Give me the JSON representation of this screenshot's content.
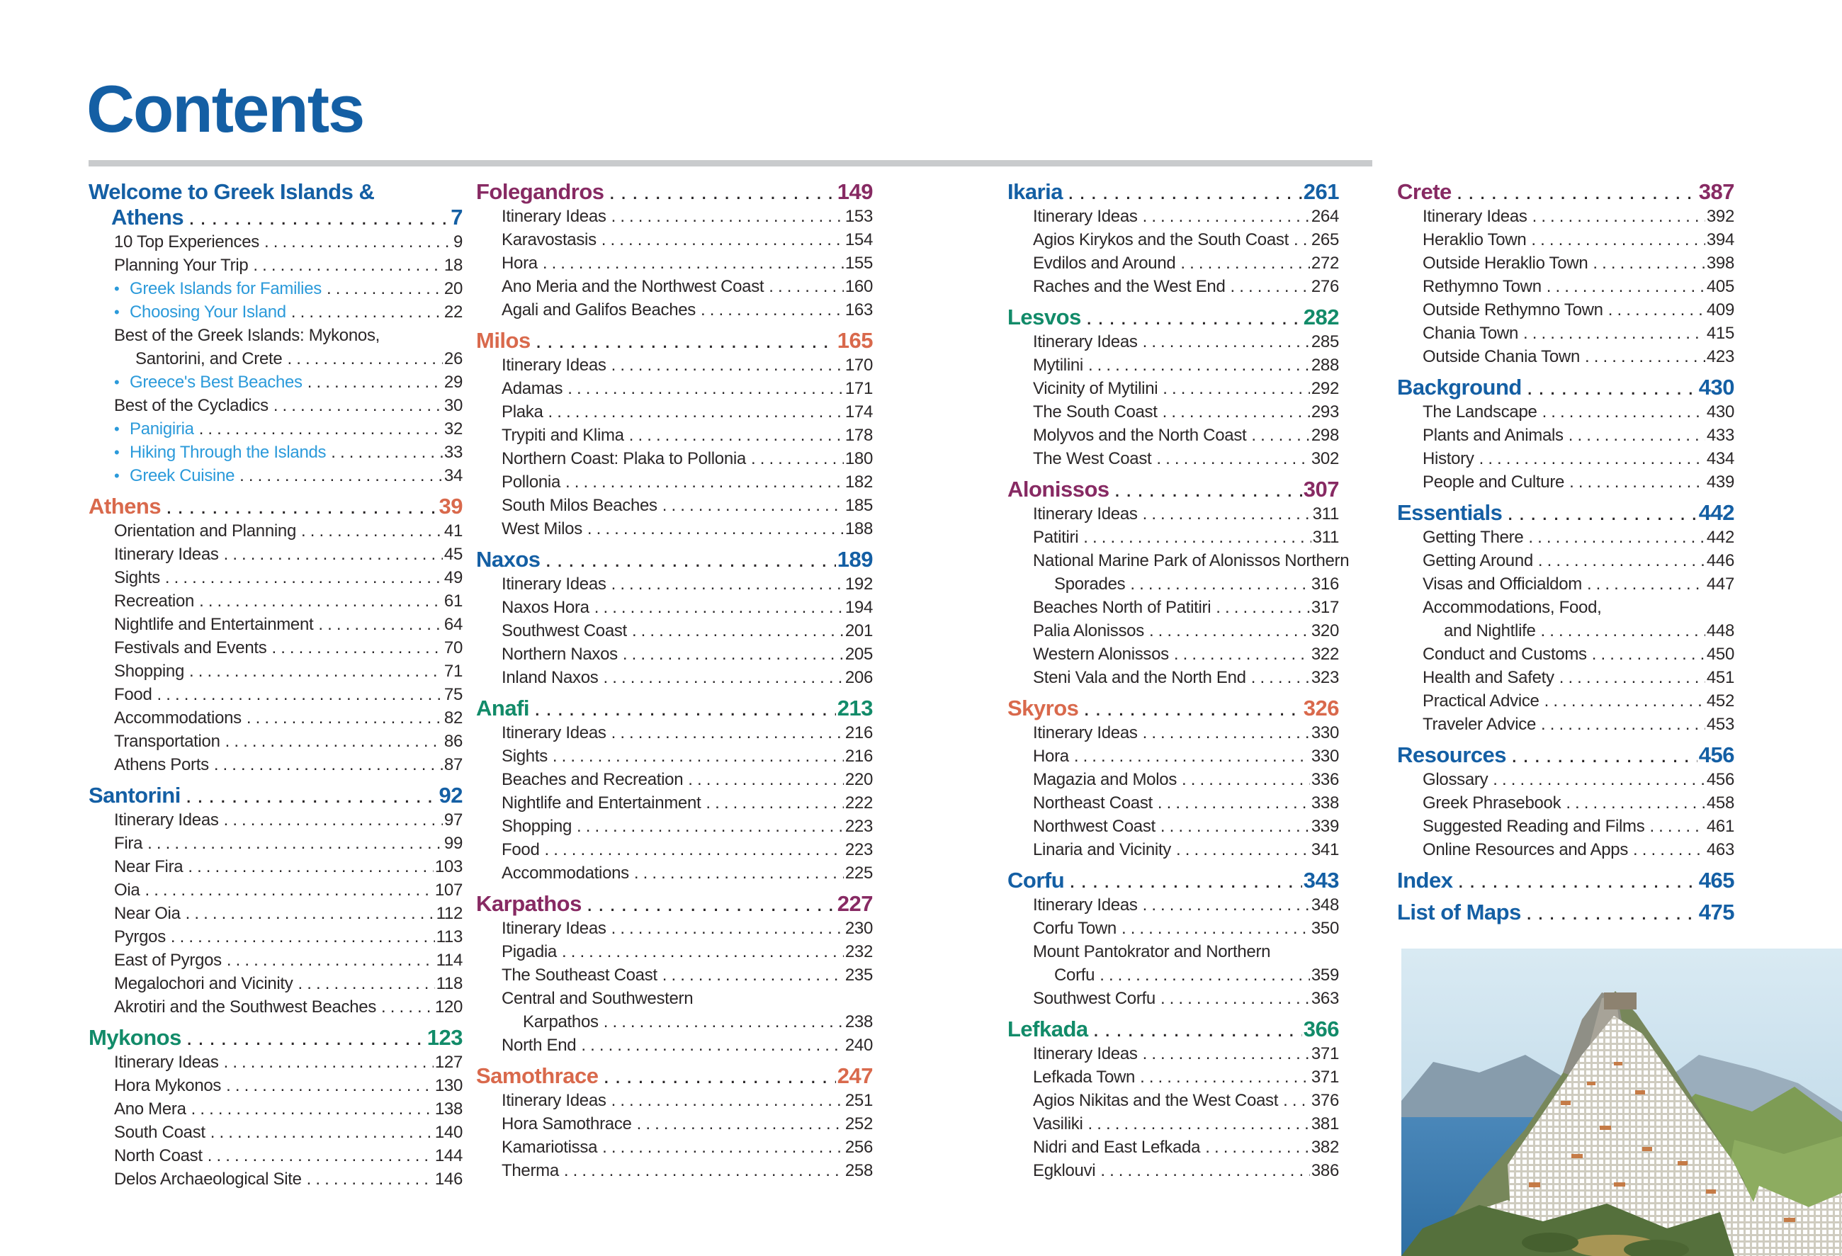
{
  "page": {
    "title": "Contents"
  },
  "colors": {
    "blue": "#145fa4",
    "orange": "#d9694c",
    "purple": "#872a63",
    "green": "#128b69",
    "bullet": "#2b9ada",
    "text": "#2b2728",
    "rule": "#c9cbcd"
  },
  "photo": {
    "name": "island-photo",
    "subject": "whitewashed hilltop village by the sea"
  },
  "columns": [
    {
      "sections": [
        {
          "color": "blue",
          "heading_lines": [
            "Welcome to Greek Islands &",
            "Athens"
          ],
          "page": "7",
          "items": [
            {
              "label": "10 Top Experiences",
              "page": "9"
            },
            {
              "label": "Planning Your Trip",
              "page": "18"
            },
            {
              "label": "Greek Islands for Families",
              "page": "20",
              "bullet": true
            },
            {
              "label": "Choosing Your Island",
              "page": "22",
              "bullet": true
            },
            {
              "lines": [
                "Best of the Greek Islands: Mykonos,",
                "Santorini, and Crete"
              ],
              "page": "26"
            },
            {
              "label": "Greece's Best Beaches",
              "page": "29",
              "bullet": true
            },
            {
              "label": "Best of the Cycladics",
              "page": "30"
            },
            {
              "label": "Panigiria",
              "page": "32",
              "bullet": true
            },
            {
              "label": "Hiking Through the Islands",
              "page": "33",
              "bullet": true
            },
            {
              "label": "Greek Cuisine",
              "page": "34",
              "bullet": true
            }
          ]
        },
        {
          "color": "orange",
          "title": "Athens",
          "page": "39",
          "items": [
            {
              "label": "Orientation and Planning",
              "page": "41"
            },
            {
              "label": "Itinerary Ideas",
              "page": "45"
            },
            {
              "label": "Sights",
              "page": "49"
            },
            {
              "label": "Recreation",
              "page": "61"
            },
            {
              "label": "Nightlife and Entertainment",
              "page": "64"
            },
            {
              "label": "Festivals and Events",
              "page": "70"
            },
            {
              "label": "Shopping",
              "page": "71"
            },
            {
              "label": "Food",
              "page": "75"
            },
            {
              "label": "Accommodations",
              "page": "82"
            },
            {
              "label": "Transportation",
              "page": "86"
            },
            {
              "label": "Athens Ports",
              "page": "87"
            }
          ]
        },
        {
          "color": "blue",
          "title": "Santorini",
          "page": "92",
          "items": [
            {
              "label": "Itinerary Ideas",
              "page": "97"
            },
            {
              "label": "Fira",
              "page": "99"
            },
            {
              "label": "Near Fira",
              "page": "103"
            },
            {
              "label": "Oia",
              "page": "107"
            },
            {
              "label": "Near Oia",
              "page": "112"
            },
            {
              "label": "Pyrgos",
              "page": "113"
            },
            {
              "label": "East of Pyrgos",
              "page": "114"
            },
            {
              "label": "Megalochori and Vicinity",
              "page": "118"
            },
            {
              "label": "Akrotiri and the Southwest Beaches",
              "page": "120"
            }
          ]
        },
        {
          "color": "green",
          "title": "Mykonos",
          "page": "123",
          "items": [
            {
              "label": "Itinerary Ideas",
              "page": "127"
            },
            {
              "label": "Hora Mykonos",
              "page": "130"
            },
            {
              "label": "Ano Mera",
              "page": "138"
            },
            {
              "label": "South Coast",
              "page": "140"
            },
            {
              "label": "North Coast",
              "page": "144"
            },
            {
              "label": "Delos Archaeological Site",
              "page": "146"
            }
          ]
        }
      ]
    },
    {
      "sections": [
        {
          "color": "purple",
          "title": "Folegandros",
          "page": "149",
          "items": [
            {
              "label": "Itinerary Ideas",
              "page": "153"
            },
            {
              "label": "Karavostasis",
              "page": "154"
            },
            {
              "label": "Hora",
              "page": "155"
            },
            {
              "label": "Ano Meria and the Northwest Coast",
              "page": "160"
            },
            {
              "label": "Agali and Galifos Beaches",
              "page": "163"
            }
          ]
        },
        {
          "color": "orange",
          "title": "Milos",
          "page": "165",
          "items": [
            {
              "label": "Itinerary Ideas",
              "page": "170"
            },
            {
              "label": "Adamas",
              "page": "171"
            },
            {
              "label": "Plaka",
              "page": "174"
            },
            {
              "label": "Trypiti and Klima",
              "page": "178"
            },
            {
              "label": "Northern Coast: Plaka to Pollonia",
              "page": "180"
            },
            {
              "label": "Pollonia",
              "page": "182"
            },
            {
              "label": "South Milos Beaches",
              "page": "185"
            },
            {
              "label": "West Milos",
              "page": "188"
            }
          ]
        },
        {
          "color": "blue",
          "title": "Naxos",
          "page": "189",
          "items": [
            {
              "label": "Itinerary Ideas",
              "page": "192"
            },
            {
              "label": "Naxos Hora",
              "page": "194"
            },
            {
              "label": "Southwest Coast",
              "page": "201"
            },
            {
              "label": "Northern Naxos",
              "page": "205"
            },
            {
              "label": "Inland Naxos",
              "page": "206"
            }
          ]
        },
        {
          "color": "green",
          "title": "Anafi",
          "page": "213",
          "items": [
            {
              "label": "Itinerary Ideas",
              "page": "216"
            },
            {
              "label": "Sights",
              "page": "216"
            },
            {
              "label": "Beaches and Recreation",
              "page": "220"
            },
            {
              "label": "Nightlife and Entertainment",
              "page": "222"
            },
            {
              "label": "Shopping",
              "page": "223"
            },
            {
              "label": "Food",
              "page": "223"
            },
            {
              "label": "Accommodations",
              "page": "225"
            }
          ]
        },
        {
          "color": "purple",
          "title": "Karpathos",
          "page": "227",
          "items": [
            {
              "label": "Itinerary Ideas",
              "page": "230"
            },
            {
              "label": "Pigadia",
              "page": "232"
            },
            {
              "label": "The Southeast Coast",
              "page": "235"
            },
            {
              "lines": [
                "Central and Southwestern",
                "Karpathos"
              ],
              "page": "238"
            },
            {
              "label": "North End",
              "page": "240"
            }
          ]
        },
        {
          "color": "orange",
          "title": "Samothrace",
          "page": "247",
          "items": [
            {
              "label": "Itinerary Ideas",
              "page": "251"
            },
            {
              "label": "Hora Samothrace",
              "page": "252"
            },
            {
              "label": "Kamariotissa",
              "page": "256"
            },
            {
              "label": "Therma",
              "page": "258"
            }
          ]
        }
      ]
    },
    {
      "sections": [
        {
          "color": "blue",
          "title": "Ikaria",
          "page": "261",
          "items": [
            {
              "label": "Itinerary Ideas",
              "page": "264"
            },
            {
              "label": "Agios Kirykos and the South Coast",
              "page": "265"
            },
            {
              "label": "Evdilos and Around",
              "page": "272"
            },
            {
              "label": "Raches and the West End",
              "page": "276"
            }
          ]
        },
        {
          "color": "green",
          "title": "Lesvos",
          "page": "282",
          "items": [
            {
              "label": "Itinerary Ideas",
              "page": "285"
            },
            {
              "label": "Mytilini",
              "page": "288"
            },
            {
              "label": "Vicinity of Mytilini",
              "page": "292"
            },
            {
              "label": "The South Coast",
              "page": "293"
            },
            {
              "label": "Molyvos and the North Coast",
              "page": "298"
            },
            {
              "label": "The West Coast",
              "page": "302"
            }
          ]
        },
        {
          "color": "purple",
          "title": "Alonissos",
          "page": "307",
          "items": [
            {
              "label": "Itinerary Ideas",
              "page": "311"
            },
            {
              "label": "Patitiri",
              "page": "311"
            },
            {
              "lines": [
                "National Marine Park of Alonissos Northern",
                "Sporades"
              ],
              "page": "316"
            },
            {
              "label": "Beaches North of Patitiri",
              "page": "317"
            },
            {
              "label": "Palia Alonissos",
              "page": "320"
            },
            {
              "label": "Western Alonissos",
              "page": "322"
            },
            {
              "label": "Steni Vala and the North End",
              "page": "323"
            }
          ]
        },
        {
          "color": "orange",
          "title": "Skyros",
          "page": "326",
          "items": [
            {
              "label": "Itinerary Ideas",
              "page": "330"
            },
            {
              "label": "Hora",
              "page": "330"
            },
            {
              "label": "Magazia and Molos",
              "page": "336"
            },
            {
              "label": "Northeast Coast",
              "page": "338"
            },
            {
              "label": "Northwest Coast",
              "page": "339"
            },
            {
              "label": "Linaria and Vicinity",
              "page": "341"
            }
          ]
        },
        {
          "color": "blue",
          "title": "Corfu",
          "page": "343",
          "items": [
            {
              "label": "Itinerary Ideas",
              "page": "348"
            },
            {
              "label": "Corfu Town",
              "page": "350"
            },
            {
              "lines": [
                "Mount Pantokrator and Northern",
                "Corfu"
              ],
              "page": "359"
            },
            {
              "label": "Southwest Corfu",
              "page": "363"
            }
          ]
        },
        {
          "color": "green",
          "title": "Lefkada",
          "page": "366",
          "items": [
            {
              "label": "Itinerary Ideas",
              "page": "371"
            },
            {
              "label": "Lefkada Town",
              "page": "371"
            },
            {
              "label": "Agios Nikitas and the West Coast",
              "page": "376"
            },
            {
              "label": "Vasiliki",
              "page": "381"
            },
            {
              "label": "Nidri and East Lefkada",
              "page": "382"
            },
            {
              "label": "Egklouvi",
              "page": "386"
            }
          ]
        }
      ]
    },
    {
      "sections": [
        {
          "color": "purple",
          "title": "Crete",
          "page": "387",
          "items": [
            {
              "label": "Itinerary Ideas",
              "page": "392"
            },
            {
              "label": "Heraklio Town",
              "page": "394"
            },
            {
              "label": "Outside Heraklio Town",
              "page": "398"
            },
            {
              "label": "Rethymno Town",
              "page": "405"
            },
            {
              "label": "Outside Rethymno Town",
              "page": "409"
            },
            {
              "label": "Chania Town",
              "page": "415"
            },
            {
              "label": "Outside Chania Town",
              "page": "423"
            }
          ]
        },
        {
          "color": "blue",
          "title": "Background",
          "page": "430",
          "items": [
            {
              "label": "The Landscape",
              "page": "430"
            },
            {
              "label": "Plants and Animals",
              "page": "433"
            },
            {
              "label": "History",
              "page": "434"
            },
            {
              "label": "People and Culture",
              "page": "439"
            }
          ]
        },
        {
          "color": "blue",
          "title": "Essentials",
          "page": "442",
          "items": [
            {
              "label": "Getting There",
              "page": "442"
            },
            {
              "label": "Getting Around",
              "page": "446"
            },
            {
              "label": "Visas and Officialdom",
              "page": "447"
            },
            {
              "lines": [
                "Accommodations, Food,",
                "and Nightlife"
              ],
              "page": "448"
            },
            {
              "label": "Conduct and Customs",
              "page": "450"
            },
            {
              "label": "Health and Safety",
              "page": "451"
            },
            {
              "label": "Practical Advice",
              "page": "452"
            },
            {
              "label": "Traveler Advice",
              "page": "453"
            }
          ]
        },
        {
          "color": "blue",
          "title": "Resources",
          "page": "456",
          "items": [
            {
              "label": "Glossary",
              "page": "456"
            },
            {
              "label": "Greek Phrasebook",
              "page": "458"
            },
            {
              "label": "Suggested Reading and Films",
              "page": "461"
            },
            {
              "label": "Online Resources and Apps",
              "page": "463"
            }
          ]
        },
        {
          "color": "blue",
          "title": "Index",
          "page": "465",
          "items": []
        },
        {
          "color": "blue",
          "title": "List of Maps",
          "page": "475",
          "items": []
        }
      ]
    }
  ]
}
